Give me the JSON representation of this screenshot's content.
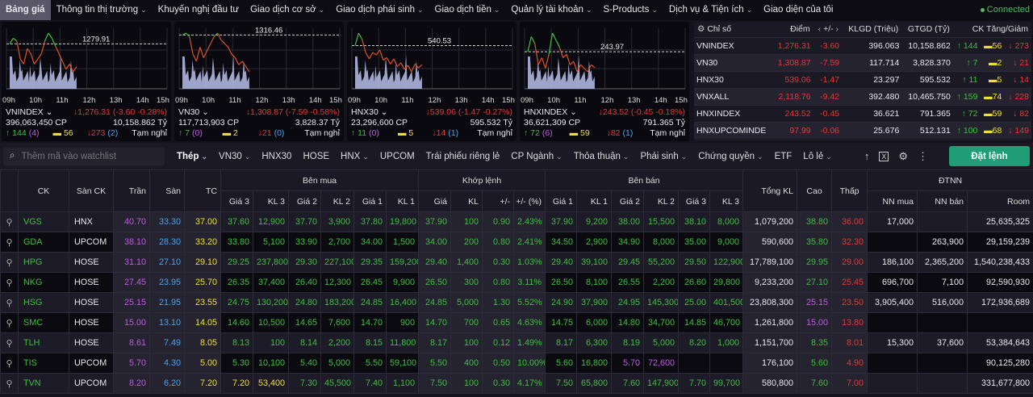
{
  "nav": {
    "items": [
      {
        "label": "Bảng giá",
        "chev": false,
        "active": true
      },
      {
        "label": "Thông tin thị trường",
        "chev": true
      },
      {
        "label": "Khuyến nghị đầu tư",
        "chev": false
      },
      {
        "label": "Giao dịch cơ sở",
        "chev": true
      },
      {
        "label": "Giao dịch phái sinh",
        "chev": true
      },
      {
        "label": "Giao dịch tiền",
        "chev": true
      },
      {
        "label": "Quản lý tài khoản",
        "chev": true
      },
      {
        "label": "S-Products",
        "chev": true
      },
      {
        "label": "Dịch vụ & Tiện ích",
        "chev": true
      },
      {
        "label": "Giao diện của tôi",
        "chev": false
      }
    ],
    "status": "Connected"
  },
  "time_labels": [
    "09h",
    "10h",
    "11h",
    "12h",
    "13h",
    "14h",
    "15h"
  ],
  "cards": [
    {
      "name": "VNINDEX",
      "ref": "1279.91",
      "value": "↓1,276.31 (-3.60 -0.28%)",
      "volume": "396,063,450 CP",
      "turnover": "10,158.862 Tỷ",
      "up": "144",
      "ceil": "(4)",
      "same": "56",
      "down": "273",
      "floor": "(2)",
      "status": "Tạm nghỉ",
      "series": [
        1279.91,
        1281,
        1280.5,
        1277,
        1276,
        1279,
        1278,
        1276,
        1277,
        1278,
        1280.5,
        1282,
        1281,
        1279.5,
        1278,
        1276.5,
        1275,
        1276,
        1274.5,
        1275.5
      ]
    },
    {
      "name": "VN30",
      "ref": "1316.46",
      "value": "↓1,308.87 (-7.59 -0.58%)",
      "volume": "117,713,903 CP",
      "turnover": "3,828.37 Tỷ",
      "up": "7",
      "ceil": "(0)",
      "same": "2",
      "down": "21",
      "floor": "(0)",
      "status": "Tạm nghỉ",
      "series": [
        1316.46,
        1317,
        1316,
        1311,
        1309,
        1313,
        1310,
        1312,
        1314,
        1316,
        1317,
        1315,
        1314,
        1313,
        1311,
        1310,
        1308,
        1309,
        1307.5,
        1306
      ]
    },
    {
      "name": "HNX30",
      "ref": "540.53",
      "value": "↓539.06 (-1.47 -0.27%)",
      "volume": "23,296,600 CP",
      "turnover": "595.532 Tỷ",
      "up": "11",
      "ceil": "(0)",
      "same": "5",
      "down": "14",
      "floor": "(1)",
      "status": "Tạm nghỉ",
      "series": [
        540.53,
        541.5,
        541,
        540,
        539.5,
        540,
        539.8,
        540.2,
        539.4,
        539.6,
        539.1,
        539.5,
        538.9,
        539.2,
        538.7,
        539,
        538.5,
        539.1,
        538.8,
        539.06
      ]
    },
    {
      "name": "HNXINDEX",
      "ref": "243.97",
      "value": "↓243.52 (-0.45 -0.18%)",
      "volume": "36,621,309 CP",
      "turnover": "791.365 Tỷ",
      "up": "72",
      "ceil": "(6)",
      "same": "59",
      "down": "82",
      "floor": "(1)",
      "status": "Tạm nghỉ",
      "series": [
        243.97,
        244.4,
        244.2,
        243.6,
        243.8,
        243.5,
        243.9,
        244.5,
        244.3,
        244.1,
        243.8,
        243.9,
        243.6,
        243.7,
        243.4,
        243.6,
        243.5,
        243.4,
        243.6,
        243.52
      ]
    }
  ],
  "index_table": {
    "headers": [
      "Chỉ số",
      "Điểm",
      "+/-",
      "KLGD (Triệu)",
      "GTGD (Tỷ)",
      "CK Tăng/Giảm"
    ],
    "rows": [
      [
        "VNINDEX",
        "1,276.31",
        "-3.60",
        "396.063",
        "10,158.862",
        "144",
        "56",
        "273"
      ],
      [
        "VN30",
        "1,308.87",
        "-7.59",
        "117.714",
        "3,828.370",
        "7",
        "2",
        "21"
      ],
      [
        "HNX30",
        "539.06",
        "-1.47",
        "23.297",
        "595.532",
        "11",
        "5",
        "14"
      ],
      [
        "VNXALL",
        "2,118.76",
        "-9.42",
        "392.480",
        "10,465.750",
        "159",
        "74",
        "228"
      ],
      [
        "HNXINDEX",
        "243.52",
        "-0.45",
        "36.621",
        "791.365",
        "72",
        "59",
        "82"
      ],
      [
        "HNXUPCOMINDE",
        "97.99",
        "-0.06",
        "25.676",
        "512.131",
        "100",
        "68",
        "149"
      ]
    ]
  },
  "filter": {
    "search_placeholder": "Thêm mã vào watchlist",
    "tabs": [
      {
        "label": "Thép",
        "chev": true,
        "active": true
      },
      {
        "label": "VN30",
        "chev": true
      },
      {
        "label": "HNX30"
      },
      {
        "label": "HOSE"
      },
      {
        "label": "HNX",
        "chev": true
      },
      {
        "label": "UPCOM"
      },
      {
        "label": "Trái phiếu riêng lẻ"
      },
      {
        "label": "CP Ngành",
        "chev": true
      },
      {
        "label": "Thỏa thuận",
        "chev": true
      },
      {
        "label": "Phái sinh",
        "chev": true
      },
      {
        "label": "Chứng quyền",
        "chev": true
      },
      {
        "label": "ETF"
      },
      {
        "label": "Lô lẻ",
        "chev": true
      }
    ],
    "order_button": "Đặt lệnh"
  },
  "board": {
    "groups": {
      "buy": "Bên mua",
      "match": "Khớp lệnh",
      "sell": "Bên bán",
      "foreign": "ĐTNN"
    },
    "headers": {
      "ck": "CK",
      "exchange": "Sàn CK",
      "ceil": "Trần",
      "floor": "Sàn",
      "ref": "TC",
      "total": "Tổng KL",
      "high": "Cao",
      "low": "Thấp",
      "buy": [
        "Giá 3",
        "KL 3",
        "Giá 2",
        "KL 2",
        "Giá 1",
        "KL 1"
      ],
      "match": [
        "Giá",
        "KL",
        "+/-",
        "+/- (%)"
      ],
      "sell": [
        "Giá 1",
        "KL 1",
        "Giá 2",
        "KL 2",
        "Giá 3",
        "KL 3"
      ],
      "foreign": [
        "NN mua",
        "NN bán",
        "Room"
      ]
    },
    "rows": [
      {
        "ck": "VGS",
        "ex": "HNX",
        "ceil": "40.70",
        "floor": "33.30",
        "ref": "37.00",
        "buy": [
          "37.60",
          "12,900",
          "37.70",
          "3,900",
          "37.80",
          "19,800"
        ],
        "match": [
          "37.90",
          "100",
          "0.90",
          "2.43%"
        ],
        "sell": [
          "37.90",
          "9,200",
          "38.00",
          "15,500",
          "38.10",
          "8,000"
        ],
        "total": "1,079,200",
        "high": "38.80",
        "low": "36.00",
        "nn": [
          "17,000",
          "",
          "25,635,325"
        ]
      },
      {
        "ck": "GDA",
        "ex": "UPCOM",
        "ceil": "38.10",
        "floor": "28.30",
        "ref": "33.20",
        "buy": [
          "33.80",
          "5,100",
          "33.90",
          "2,700",
          "34.00",
          "1,500"
        ],
        "match": [
          "34.00",
          "200",
          "0.80",
          "2.41%"
        ],
        "sell": [
          "34.50",
          "2,900",
          "34.90",
          "8,000",
          "35.00",
          "9,000"
        ],
        "total": "590,600",
        "high": "35.80",
        "low": "32.30",
        "nn": [
          "",
          "263,900",
          "29,159,239"
        ]
      },
      {
        "ck": "HPG",
        "ex": "HOSE",
        "ceil": "31.10",
        "floor": "27.10",
        "ref": "29.10",
        "buy": [
          "29.25",
          "237,800",
          "29.30",
          "227,100",
          "29.35",
          "159,200"
        ],
        "match": [
          "29.40",
          "1,400",
          "0.30",
          "1.03%"
        ],
        "sell": [
          "29.40",
          "39,100",
          "29.45",
          "55,200",
          "29.50",
          "122,900"
        ],
        "total": "17,789,100",
        "high": "29.95",
        "low": "29.00",
        "nn": [
          "186,100",
          "2,365,200",
          "1,540,238,433"
        ]
      },
      {
        "ck": "NKG",
        "ex": "HOSE",
        "ceil": "27.45",
        "floor": "23.95",
        "ref": "25.70",
        "buy": [
          "26.35",
          "37,400",
          "26.40",
          "12,300",
          "26.45",
          "9,900"
        ],
        "match": [
          "26.50",
          "300",
          "0.80",
          "3.11%"
        ],
        "sell": [
          "26.50",
          "8,100",
          "26.55",
          "2,200",
          "26.60",
          "29,800"
        ],
        "total": "9,233,200",
        "high": "27.10",
        "low": "25.45",
        "nn": [
          "696,700",
          "7,100",
          "92,590,930"
        ]
      },
      {
        "ck": "HSG",
        "ex": "HOSE",
        "ceil": "25.15",
        "floor": "21.95",
        "ref": "23.55",
        "buy": [
          "24.75",
          "130,200",
          "24.80",
          "183,200",
          "24.85",
          "16,400"
        ],
        "match": [
          "24.85",
          "5,000",
          "1.30",
          "5.52%"
        ],
        "sell": [
          "24.90",
          "37,900",
          "24.95",
          "145,300",
          "25.00",
          "401,500"
        ],
        "total": "23,808,300",
        "high": "25.15",
        "low": "23.50",
        "nn": [
          "3,905,400",
          "516,000",
          "172,936,689"
        ]
      },
      {
        "ck": "SMC",
        "ex": "HOSE",
        "ceil": "15.00",
        "floor": "13.10",
        "ref": "14.05",
        "buy": [
          "14.60",
          "10,500",
          "14.65",
          "7,600",
          "14.70",
          "900"
        ],
        "match": [
          "14.70",
          "700",
          "0.65",
          "4.63%"
        ],
        "sell": [
          "14.75",
          "6,000",
          "14.80",
          "34,700",
          "14.85",
          "46,700"
        ],
        "total": "1,261,800",
        "high": "15.00",
        "low": "13.80",
        "nn": [
          "",
          "",
          ""
        ]
      },
      {
        "ck": "TLH",
        "ex": "HOSE",
        "ceil": "8.61",
        "floor": "7.49",
        "ref": "8.05",
        "buy": [
          "8.13",
          "100",
          "8.14",
          "2,200",
          "8.15",
          "11,800"
        ],
        "match": [
          "8.17",
          "100",
          "0.12",
          "1.49%"
        ],
        "sell": [
          "8.17",
          "6,300",
          "8.19",
          "5,000",
          "8.20",
          "1,000"
        ],
        "total": "1,151,700",
        "high": "8.35",
        "low": "8.01",
        "nn": [
          "15,300",
          "37,600",
          "53,384,643"
        ]
      },
      {
        "ck": "TIS",
        "ex": "UPCOM",
        "ceil": "5.70",
        "floor": "4.30",
        "ref": "5.00",
        "buy": [
          "5.30",
          "10,100",
          "5.40",
          "5,000",
          "5.50",
          "59,100"
        ],
        "match": [
          "5.50",
          "400",
          "0.50",
          "10.00%"
        ],
        "sell": [
          "5.60",
          "16,800",
          "5.70",
          "72,600",
          "",
          ""
        ],
        "total": "176,100",
        "high": "5.60",
        "low": "4.90",
        "nn": [
          "",
          "",
          "90,125,280"
        ]
      },
      {
        "ck": "TVN",
        "ex": "UPCOM",
        "ceil": "8.20",
        "floor": "6.20",
        "ref": "7.20",
        "buy": [
          "7.20",
          "53,400",
          "7.30",
          "45,500",
          "7.40",
          "1,100"
        ],
        "match": [
          "7.50",
          "100",
          "0.30",
          "4.17%"
        ],
        "sell": [
          "7.50",
          "65,800",
          "7.60",
          "147,900",
          "7.70",
          "99,700"
        ],
        "total": "580,800",
        "high": "7.60",
        "low": "7.00",
        "nn": [
          "",
          "",
          "331,677,800"
        ]
      }
    ]
  },
  "colors": {
    "up": "#3fbf3f",
    "down": "#e53935",
    "ref": "#f0e030",
    "ceil": "#c15ae6",
    "floor": "#4aa3f0",
    "accent": "#1f9d74"
  }
}
